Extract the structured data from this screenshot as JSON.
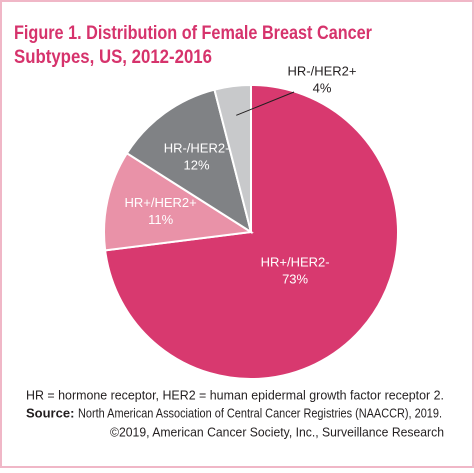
{
  "chart_data": {
    "type": "pie",
    "title": "Figure 1. Distribution of Female Breast Cancer",
    "subtitle": "Subtypes, US, 2012-2016",
    "categories": [
      "HR+/HER2-",
      "HR+/HER2+",
      "HR-/HER2-",
      "HR-/HER2+"
    ],
    "values": [
      73,
      11,
      12,
      4
    ],
    "value_labels": [
      "73%",
      "11%",
      "12%",
      "4%"
    ],
    "colors": [
      "#d8396f",
      "#e992a8",
      "#808285",
      "#c8c9cb"
    ],
    "note": "HR = hormone receptor, HER2 = human epidermal growth factor receptor 2.",
    "source_label": "Source:",
    "source": "North American Association of Central Cancer Registries (NAACCR), 2019.",
    "copyright": "©2019, American Cancer Society, Inc., Surveillance Research"
  }
}
